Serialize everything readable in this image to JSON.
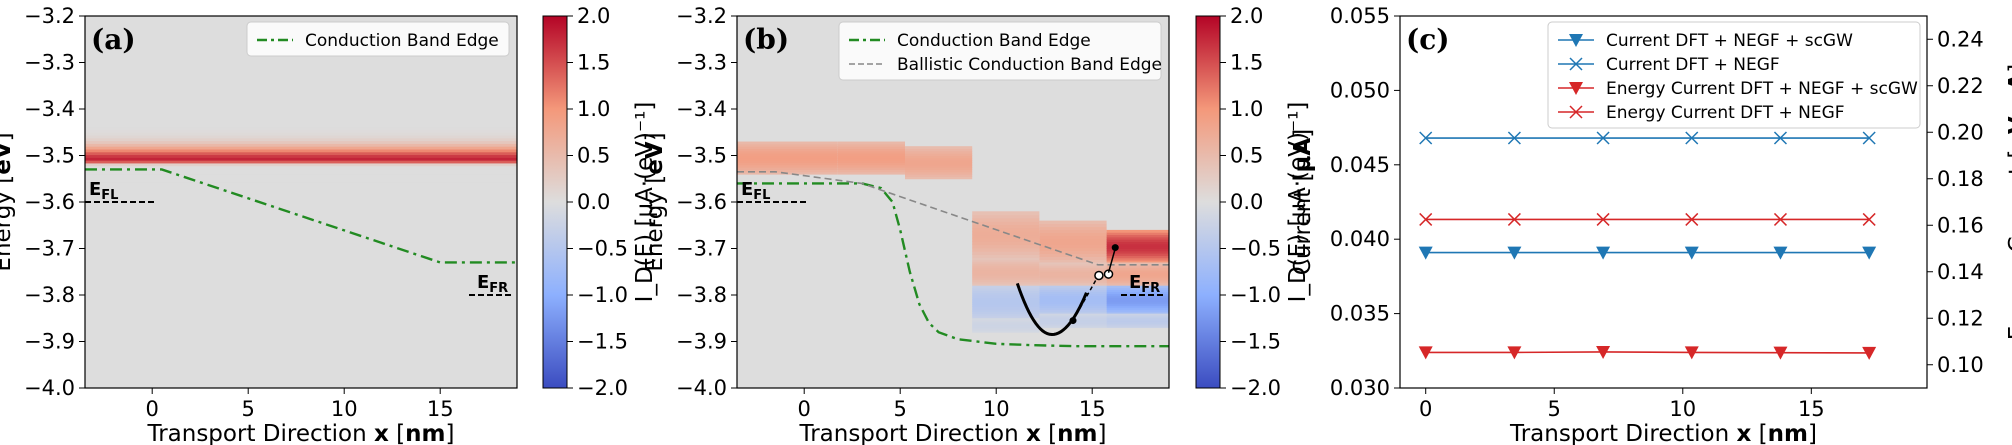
{
  "chart_data": [
    {
      "type": "heatmap",
      "panel_label": "(a)",
      "xlabel": "Transport Direction x [nm]",
      "ylabel": "Energy [eV]",
      "xlim": [
        -3.5,
        19
      ],
      "ylim": [
        -4.0,
        -3.2
      ],
      "xticks": [
        0,
        5,
        10,
        15
      ],
      "yticks": [
        -4.0,
        -3.9,
        -3.8,
        -3.7,
        -3.6,
        -3.5,
        -3.4,
        -3.3,
        -3.2
      ],
      "ytick_labels": [
        "−4.0",
        "−3.9",
        "−3.8",
        "−3.7",
        "−3.6",
        "−3.5",
        "−3.4",
        "−3.3",
        "−3.2"
      ],
      "legend": [
        "Conduction Band Edge"
      ],
      "legend_position": "top-right",
      "series": [
        {
          "name": "Conduction Band Edge",
          "style": "dash-dot",
          "color": "#228b22",
          "x": [
            -3.5,
            0.5,
            15,
            19
          ],
          "y": [
            -3.53,
            -3.53,
            -3.73,
            -3.73
          ]
        }
      ],
      "current_density_band": {
        "x_range": [
          -3.5,
          19
        ],
        "energy_center": -3.51,
        "peak_value": 1.8
      },
      "fermi_levels": [
        {
          "label": "E",
          "sub": "FL",
          "x": [
            -3.5,
            0.2
          ],
          "y": -3.6
        },
        {
          "label": "E",
          "sub": "FR",
          "x": [
            16.5,
            18.8
          ],
          "y": -3.8
        }
      ],
      "colorbar": {
        "label": "I_D(E) [µA·(eV)⁻¹]",
        "range": [
          -2.0,
          2.0
        ],
        "ticks": [
          2.0,
          1.5,
          1.0,
          0.5,
          0.0,
          -0.5,
          -1.0,
          -1.5,
          -2.0
        ],
        "tick_labels": [
          "2.0",
          "1.5",
          "1.0",
          "0.5",
          "0.0",
          "−0.5",
          "−1.0",
          "−1.5",
          "−2.0"
        ],
        "colormap": "coolwarm"
      }
    },
    {
      "type": "heatmap",
      "panel_label": "(b)",
      "xlabel": "Transport Direction x [nm]",
      "ylabel": "Energy [eV]",
      "xlim": [
        -3.5,
        19
      ],
      "ylim": [
        -4.0,
        -3.2
      ],
      "xticks": [
        0,
        5,
        10,
        15
      ],
      "yticks": [
        -4.0,
        -3.9,
        -3.8,
        -3.7,
        -3.6,
        -3.5,
        -3.4,
        -3.3,
        -3.2
      ],
      "ytick_labels": [
        "−4.0",
        "−3.9",
        "−3.8",
        "−3.7",
        "−3.6",
        "−3.5",
        "−3.4",
        "−3.3",
        "−3.2"
      ],
      "legend": [
        "Conduction Band Edge",
        "Ballistic Conduction Band Edge"
      ],
      "legend_position": "top-right",
      "series": [
        {
          "name": "Conduction Band Edge",
          "style": "dash-dot",
          "color": "#228b22",
          "x": [
            -3.5,
            0,
            2,
            3,
            4,
            4.6,
            5,
            5.5,
            6,
            6.5,
            7,
            8,
            10,
            12,
            14,
            16,
            19
          ],
          "y": [
            -3.56,
            -3.56,
            -3.56,
            -3.56,
            -3.57,
            -3.6,
            -3.66,
            -3.75,
            -3.82,
            -3.86,
            -3.88,
            -3.895,
            -3.905,
            -3.908,
            -3.91,
            -3.91,
            -3.91
          ]
        },
        {
          "name": "Ballistic Conduction Band Edge",
          "style": "dashed",
          "color": "#888888",
          "x": [
            -3.5,
            -1.5,
            3,
            15.3,
            19
          ],
          "y": [
            -3.535,
            -3.535,
            -3.56,
            -3.735,
            -3.735
          ]
        }
      ],
      "current_density_blocks": [
        {
          "x": [
            -3.5,
            1.75
          ],
          "rows": [
            [
              -3.54,
              -3.47,
              0.9
            ]
          ]
        },
        {
          "x": [
            1.75,
            5.25
          ],
          "rows": [
            [
              -3.54,
              -3.47,
              0.9
            ]
          ]
        },
        {
          "x": [
            5.25,
            8.75
          ],
          "rows": [
            [
              -3.55,
              -3.48,
              0.8
            ]
          ]
        },
        {
          "x": [
            8.75,
            12.25
          ],
          "rows": [
            [
              -3.72,
              -3.62,
              0.7
            ],
            [
              -3.78,
              -3.72,
              0.6
            ],
            [
              -3.85,
              -3.78,
              -0.5
            ],
            [
              -3.88,
              -3.85,
              -0.2
            ]
          ]
        },
        {
          "x": [
            12.25,
            15.75
          ],
          "rows": [
            [
              -3.73,
              -3.64,
              0.8
            ],
            [
              -3.78,
              -3.73,
              0.6
            ],
            [
              -3.84,
              -3.78,
              -0.7
            ],
            [
              -3.87,
              -3.84,
              -0.3
            ]
          ]
        },
        {
          "x": [
            15.75,
            19
          ],
          "rows": [
            [
              -3.73,
              -3.66,
              1.7
            ],
            [
              -3.78,
              -3.73,
              0.8
            ],
            [
              -3.84,
              -3.78,
              -1.2
            ],
            [
              -3.87,
              -3.84,
              -0.4
            ]
          ]
        }
      ],
      "fermi_levels": [
        {
          "label": "E",
          "sub": "FL",
          "x": [
            -3.5,
            0.2
          ],
          "y": -3.6
        },
        {
          "label": "E",
          "sub": "FR",
          "x": [
            16.5,
            18.8
          ],
          "y": -3.8
        }
      ],
      "colorbar": {
        "label": "I_D(E) [µA·(eV)⁻¹]",
        "range": [
          -2.0,
          2.0
        ],
        "ticks": [
          2.0,
          1.5,
          1.0,
          0.5,
          0.0,
          -0.5,
          -1.0,
          -1.5,
          -2.0
        ],
        "tick_labels": [
          "2.0",
          "1.5",
          "1.0",
          "0.5",
          "0.0",
          "−0.5",
          "−1.0",
          "−1.5",
          "−2.0"
        ],
        "colormap": "coolwarm"
      }
    },
    {
      "type": "line",
      "panel_label": "(c)",
      "xlabel": "Transport Direction x [nm]",
      "ylabel": "Current [µA]",
      "ylabel_right": "Energy Current [eV·µA]",
      "xlim": [
        -1,
        19.5
      ],
      "ylim": [
        0.03,
        0.055
      ],
      "ylim_right": [
        0.09,
        0.25
      ],
      "xticks": [
        0,
        5,
        10,
        15
      ],
      "yticks": [
        "0.030",
        "0.035",
        "0.040",
        "0.045",
        "0.050",
        "0.055"
      ],
      "yticks_right": [
        "0.10",
        "0.12",
        "0.14",
        "0.16",
        "0.18",
        "0.20",
        "0.22",
        "0.24"
      ],
      "legend_position": "top-right",
      "series": [
        {
          "name": "Current DFT + NEGF + scGW",
          "axis": "left",
          "color": "#1f77b4",
          "marker": "triangle",
          "x": [
            0,
            3.45,
            6.9,
            10.35,
            13.8,
            17.25
          ],
          "y": [
            0.0391,
            0.0391,
            0.0391,
            0.0391,
            0.0391,
            0.0391
          ]
        },
        {
          "name": "Current DFT + NEGF",
          "axis": "left",
          "color": "#1f77b4",
          "marker": "x",
          "x": [
            0,
            3.45,
            6.9,
            10.35,
            13.8,
            17.25
          ],
          "y": [
            0.0468,
            0.0468,
            0.0468,
            0.0468,
            0.0468,
            0.0468
          ]
        },
        {
          "name": "Energy Current DFT + NEGF + scGW",
          "axis": "right",
          "color": "#d62728",
          "marker": "triangle",
          "x": [
            0,
            3.45,
            6.9,
            10.35,
            13.8,
            17.25
          ],
          "y": [
            0.1053,
            0.1053,
            0.1055,
            0.1053,
            0.1052,
            0.1051
          ]
        },
        {
          "name": "Energy Current DFT + NEGF",
          "axis": "right",
          "color": "#d62728",
          "marker": "x",
          "x": [
            0,
            3.45,
            6.9,
            10.35,
            13.8,
            17.25
          ],
          "y": [
            0.1625,
            0.1625,
            0.1625,
            0.1625,
            0.1625,
            0.1625
          ]
        }
      ]
    }
  ]
}
